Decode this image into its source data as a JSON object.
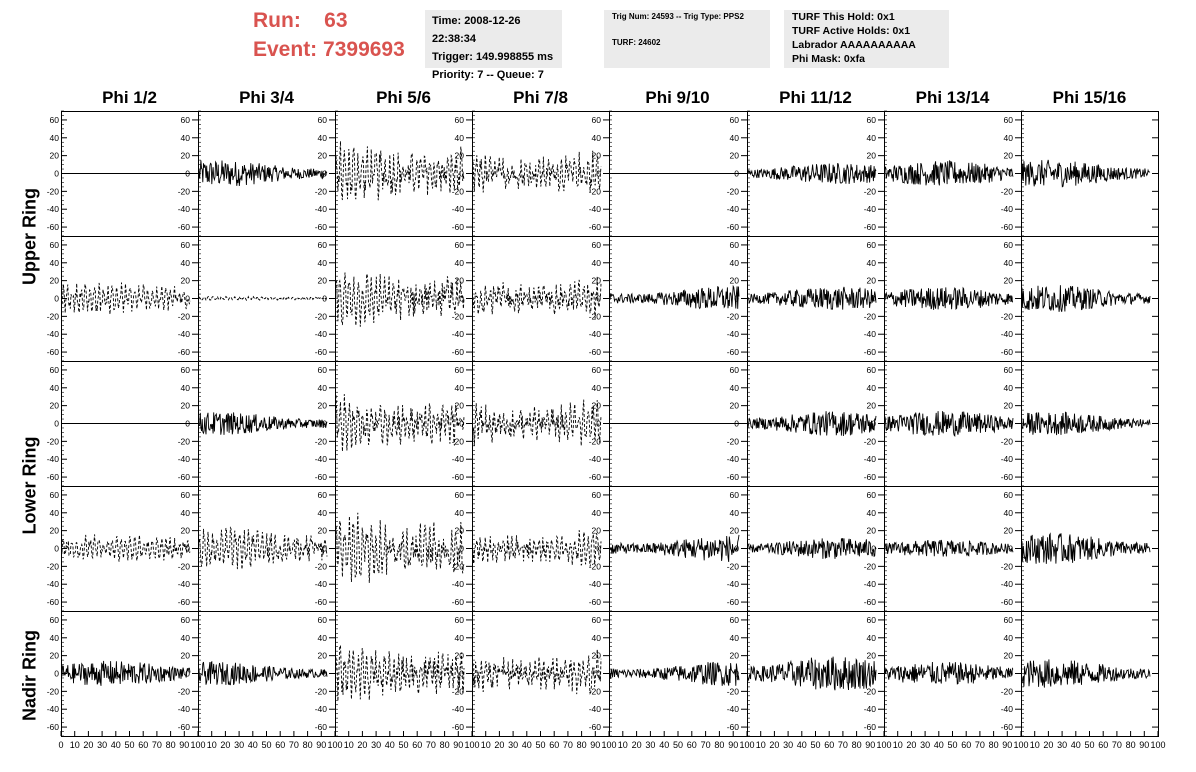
{
  "header": {
    "run_label": "Run:",
    "run_value": "63",
    "event_label": "Event:",
    "event_value": "7399693",
    "time_line": "Time: 2008-12-26 22:38:34",
    "trigger_line": "Trigger: 149.998855 ms",
    "priority_line": "Priority: 7 -- Queue: 7",
    "trig_num_line": "Trig Num: 24593 -- Trig Type: PPS2",
    "turf_line": "TURF: 24602",
    "turf_hold_line": "TURF This Hold: 0x1",
    "turf_active_line": "TURF Active Holds: 0x1",
    "labrador_line": "Labrador AAAAAAAAAA",
    "phi_mask_line": "Phi Mask: 0xfa"
  },
  "columns": [
    "Phi 1/2",
    "Phi 3/4",
    "Phi 5/6",
    "Phi 7/8",
    "Phi 9/10",
    "Phi 11/12",
    "Phi 13/14",
    "Phi 15/16"
  ],
  "ring_labels": [
    "Upper Ring",
    "Lower Ring",
    "Nadir Ring"
  ],
  "colors": {
    "header_text": "#d9534f",
    "info_box_bg": "#ebebeb",
    "trace": "#000000"
  },
  "chart_data": {
    "type": "line",
    "rows": 5,
    "cols": 8,
    "y_ticks": [
      60,
      40,
      20,
      0,
      -20,
      -40,
      -60
    ],
    "ylim": [
      -70,
      70
    ],
    "x_ticks": [
      0,
      10,
      20,
      30,
      40,
      50,
      60,
      70,
      80,
      90,
      100
    ],
    "xlim": [
      0,
      100
    ],
    "panels": [
      {
        "row": 0,
        "col": 0,
        "style": "flat",
        "dashed": false,
        "amp": 0
      },
      {
        "row": 0,
        "col": 1,
        "style": "noise",
        "dashed": false,
        "amp": 14
      },
      {
        "row": 0,
        "col": 2,
        "style": "noise",
        "dashed": true,
        "amp": 32
      },
      {
        "row": 0,
        "col": 3,
        "style": "noise",
        "dashed": true,
        "amp": 24
      },
      {
        "row": 0,
        "col": 4,
        "style": "flat",
        "dashed": false,
        "amp": 0
      },
      {
        "row": 0,
        "col": 5,
        "style": "noise",
        "dashed": false,
        "amp": 11
      },
      {
        "row": 0,
        "col": 6,
        "style": "noise",
        "dashed": false,
        "amp": 13
      },
      {
        "row": 0,
        "col": 7,
        "style": "noise",
        "dashed": false,
        "amp": 14
      },
      {
        "row": 1,
        "col": 0,
        "style": "noise",
        "dashed": true,
        "amp": 16
      },
      {
        "row": 1,
        "col": 1,
        "style": "noise",
        "dashed": true,
        "amp": 2
      },
      {
        "row": 1,
        "col": 2,
        "style": "noise",
        "dashed": true,
        "amp": 30
      },
      {
        "row": 1,
        "col": 3,
        "style": "noise",
        "dashed": true,
        "amp": 22
      },
      {
        "row": 1,
        "col": 4,
        "style": "noise",
        "dashed": false,
        "amp": 13
      },
      {
        "row": 1,
        "col": 5,
        "style": "noise",
        "dashed": false,
        "amp": 12
      },
      {
        "row": 1,
        "col": 6,
        "style": "noise",
        "dashed": false,
        "amp": 12
      },
      {
        "row": 1,
        "col": 7,
        "style": "noise",
        "dashed": false,
        "amp": 14
      },
      {
        "row": 2,
        "col": 0,
        "style": "flat",
        "dashed": false,
        "amp": 0
      },
      {
        "row": 2,
        "col": 1,
        "style": "noise",
        "dashed": false,
        "amp": 12
      },
      {
        "row": 2,
        "col": 2,
        "style": "noise",
        "dashed": true,
        "amp": 30
      },
      {
        "row": 2,
        "col": 3,
        "style": "noise",
        "dashed": true,
        "amp": 25
      },
      {
        "row": 2,
        "col": 4,
        "style": "flat",
        "dashed": false,
        "amp": 0
      },
      {
        "row": 2,
        "col": 5,
        "style": "noise",
        "dashed": false,
        "amp": 13
      },
      {
        "row": 2,
        "col": 6,
        "style": "noise",
        "dashed": false,
        "amp": 13
      },
      {
        "row": 2,
        "col": 7,
        "style": "noise",
        "dashed": false,
        "amp": 12
      },
      {
        "row": 3,
        "col": 0,
        "style": "noise",
        "dashed": true,
        "amp": 14
      },
      {
        "row": 3,
        "col": 1,
        "style": "noise",
        "dashed": true,
        "amp": 20
      },
      {
        "row": 3,
        "col": 2,
        "style": "noise",
        "dashed": true,
        "amp": 38
      },
      {
        "row": 3,
        "col": 3,
        "style": "noise",
        "dashed": true,
        "amp": 20
      },
      {
        "row": 3,
        "col": 4,
        "style": "noise",
        "dashed": false,
        "amp": 14
      },
      {
        "row": 3,
        "col": 5,
        "style": "noise",
        "dashed": false,
        "amp": 11
      },
      {
        "row": 3,
        "col": 6,
        "style": "noise",
        "dashed": false,
        "amp": 9
      },
      {
        "row": 3,
        "col": 7,
        "style": "noise",
        "dashed": false,
        "amp": 16
      },
      {
        "row": 4,
        "col": 0,
        "style": "noise",
        "dashed": false,
        "amp": 13
      },
      {
        "row": 4,
        "col": 1,
        "style": "noise",
        "dashed": false,
        "amp": 12
      },
      {
        "row": 4,
        "col": 2,
        "style": "noise",
        "dashed": true,
        "amp": 30
      },
      {
        "row": 4,
        "col": 3,
        "style": "noise",
        "dashed": true,
        "amp": 24
      },
      {
        "row": 4,
        "col": 4,
        "style": "noise",
        "dashed": false,
        "amp": 13
      },
      {
        "row": 4,
        "col": 5,
        "style": "noise",
        "dashed": false,
        "amp": 18
      },
      {
        "row": 4,
        "col": 6,
        "style": "noise",
        "dashed": false,
        "amp": 12
      },
      {
        "row": 4,
        "col": 7,
        "style": "noise",
        "dashed": false,
        "amp": 15
      }
    ]
  }
}
